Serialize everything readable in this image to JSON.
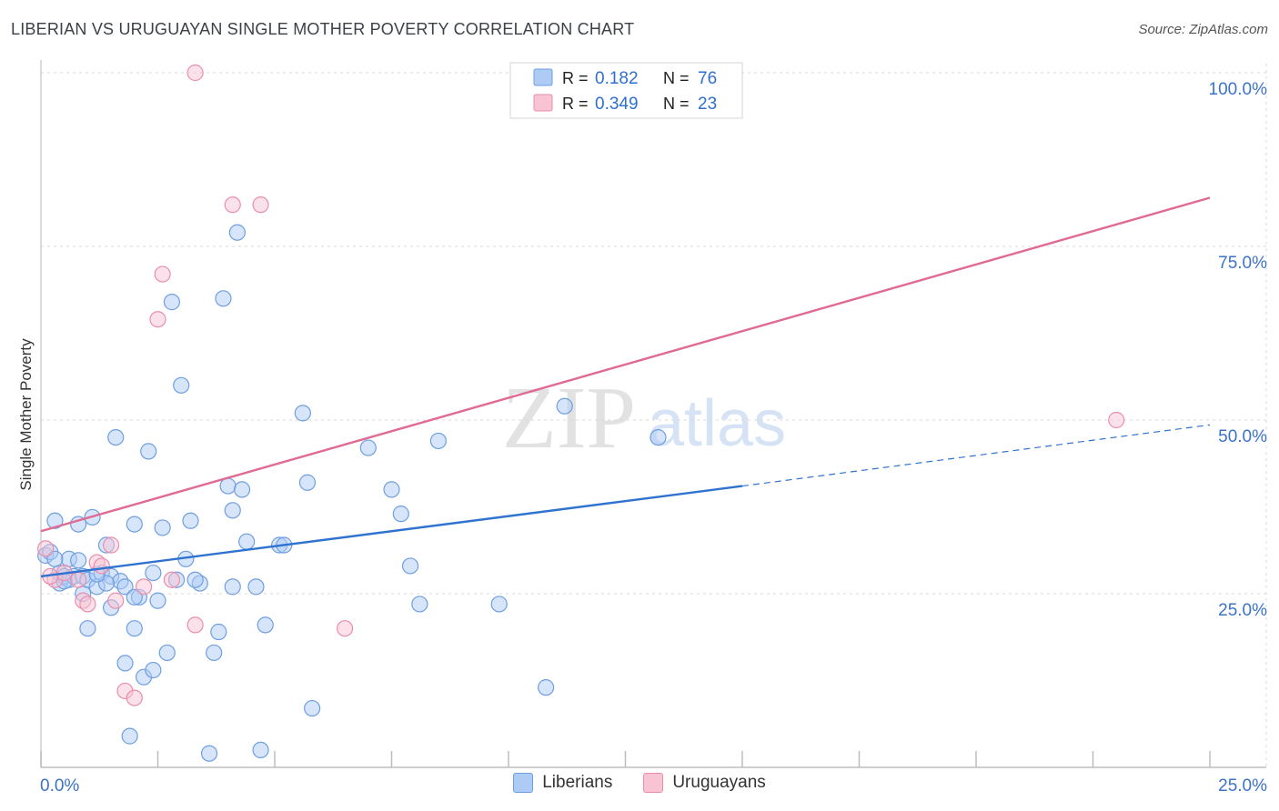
{
  "title": "LIBERIAN VS URUGUAYAN SINGLE MOTHER POVERTY CORRELATION CHART",
  "source": "Source: ZipAtlas.com",
  "watermark": {
    "zip": "ZIP",
    "atlas": "atlas"
  },
  "colors": {
    "liberian_fill": "#aecbf5",
    "liberian_stroke": "#6f9fe0",
    "liberian_line": "#2f73d0",
    "uruguayan_fill": "#f8c3d3",
    "uruguayan_stroke": "#ea8fab",
    "uruguayan_line": "#e06a93",
    "axis_text": "#3b73c9",
    "grid": "#d8d8d8"
  },
  "legend": {
    "rows": [
      {
        "r_label": "R =",
        "r_value": "0.182",
        "n_label": "N =",
        "n_value": "76"
      },
      {
        "r_label": "R =",
        "r_value": "0.349",
        "n_label": "N =",
        "n_value": "23"
      }
    ]
  },
  "chart_data": {
    "type": "scatter",
    "title": "LIBERIAN VS URUGUAYAN SINGLE MOTHER POVERTY CORRELATION CHART",
    "xlabel": "",
    "ylabel": "Single Mother Poverty",
    "xlim": [
      0,
      25
    ],
    "ylim": [
      0,
      100
    ],
    "x_tick_labels": [
      "0.0%",
      "25.0%"
    ],
    "y_tick_labels": [
      "100.0%",
      "75.0%",
      "50.0%",
      "25.0%"
    ],
    "y_ticks": [
      100,
      75,
      50,
      25
    ],
    "grid": true,
    "series": [
      {
        "name": "Liberians",
        "r": 0.182,
        "n": 76,
        "trend": {
          "x0": 0,
          "y0": 27.5,
          "x1": 15,
          "y1": 40.5,
          "dashed_to_x": 25,
          "dashed_to_y": 49.3
        },
        "points": [
          [
            0.1,
            30.5
          ],
          [
            0.2,
            31.0
          ],
          [
            0.3,
            35.5
          ],
          [
            0.4,
            26.5
          ],
          [
            0.4,
            28.0
          ],
          [
            0.5,
            27.5
          ],
          [
            0.6,
            30.0
          ],
          [
            0.6,
            27.0
          ],
          [
            0.7,
            27.5
          ],
          [
            0.8,
            29.8
          ],
          [
            0.8,
            35.0
          ],
          [
            0.9,
            27.5
          ],
          [
            0.9,
            25.0
          ],
          [
            1.0,
            20.0
          ],
          [
            1.0,
            27.0
          ],
          [
            1.1,
            36.0
          ],
          [
            1.2,
            26.0
          ],
          [
            1.3,
            28.0
          ],
          [
            1.4,
            32.0
          ],
          [
            1.5,
            27.5
          ],
          [
            1.5,
            23.0
          ],
          [
            1.6,
            47.5
          ],
          [
            1.7,
            26.8
          ],
          [
            1.8,
            26.0
          ],
          [
            1.8,
            15.0
          ],
          [
            1.9,
            4.5
          ],
          [
            2.0,
            35.0
          ],
          [
            2.0,
            20.0
          ],
          [
            2.1,
            24.5
          ],
          [
            2.2,
            13.0
          ],
          [
            2.3,
            45.5
          ],
          [
            2.4,
            14.0
          ],
          [
            2.4,
            28.0
          ],
          [
            2.5,
            24.0
          ],
          [
            2.6,
            34.5
          ],
          [
            2.7,
            16.5
          ],
          [
            2.8,
            67.0
          ],
          [
            2.9,
            27.0
          ],
          [
            3.0,
            55.0
          ],
          [
            3.1,
            30.0
          ],
          [
            3.2,
            35.5
          ],
          [
            3.4,
            26.5
          ],
          [
            3.6,
            2.0
          ],
          [
            3.7,
            16.5
          ],
          [
            3.8,
            19.5
          ],
          [
            3.9,
            67.5
          ],
          [
            4.0,
            40.5
          ],
          [
            4.1,
            37.0
          ],
          [
            4.1,
            26.0
          ],
          [
            4.2,
            77.0
          ],
          [
            4.3,
            40.0
          ],
          [
            4.4,
            32.5
          ],
          [
            4.6,
            26.0
          ],
          [
            4.7,
            2.5
          ],
          [
            4.8,
            20.5
          ],
          [
            5.1,
            32.0
          ],
          [
            5.2,
            32.0
          ],
          [
            5.6,
            51.0
          ],
          [
            5.7,
            41.0
          ],
          [
            5.8,
            8.5
          ],
          [
            7.0,
            46.0
          ],
          [
            7.5,
            40.0
          ],
          [
            7.7,
            36.5
          ],
          [
            7.9,
            29.0
          ],
          [
            8.1,
            23.5
          ],
          [
            8.5,
            47.0
          ],
          [
            9.8,
            23.5
          ],
          [
            10.8,
            11.5
          ],
          [
            11.2,
            52.0
          ],
          [
            13.2,
            47.5
          ],
          [
            0.3,
            30.0
          ],
          [
            0.5,
            26.8
          ],
          [
            1.4,
            26.5
          ],
          [
            2.0,
            24.5
          ],
          [
            3.3,
            27.0
          ],
          [
            1.2,
            27.8
          ]
        ]
      },
      {
        "name": "Uruguayans",
        "r": 0.349,
        "n": 23,
        "trend": {
          "x0": 0,
          "y0": 34.0,
          "x1": 25,
          "y1": 82.0
        },
        "points": [
          [
            0.1,
            31.5
          ],
          [
            0.3,
            27.0
          ],
          [
            0.5,
            28.0
          ],
          [
            0.8,
            27.0
          ],
          [
            0.9,
            24.0
          ],
          [
            1.0,
            23.5
          ],
          [
            1.2,
            29.5
          ],
          [
            1.3,
            29.0
          ],
          [
            1.5,
            32.0
          ],
          [
            1.6,
            24.0
          ],
          [
            1.8,
            11.0
          ],
          [
            2.0,
            10.0
          ],
          [
            2.2,
            26.0
          ],
          [
            2.5,
            64.5
          ],
          [
            2.6,
            71.0
          ],
          [
            2.8,
            27.0
          ],
          [
            3.3,
            100.0
          ],
          [
            3.3,
            20.5
          ],
          [
            4.1,
            81.0
          ],
          [
            4.7,
            81.0
          ],
          [
            6.5,
            20.0
          ],
          [
            23.0,
            50.0
          ],
          [
            0.2,
            27.5
          ]
        ]
      }
    ],
    "legend": [
      "Liberians",
      "Uruguayans"
    ]
  }
}
